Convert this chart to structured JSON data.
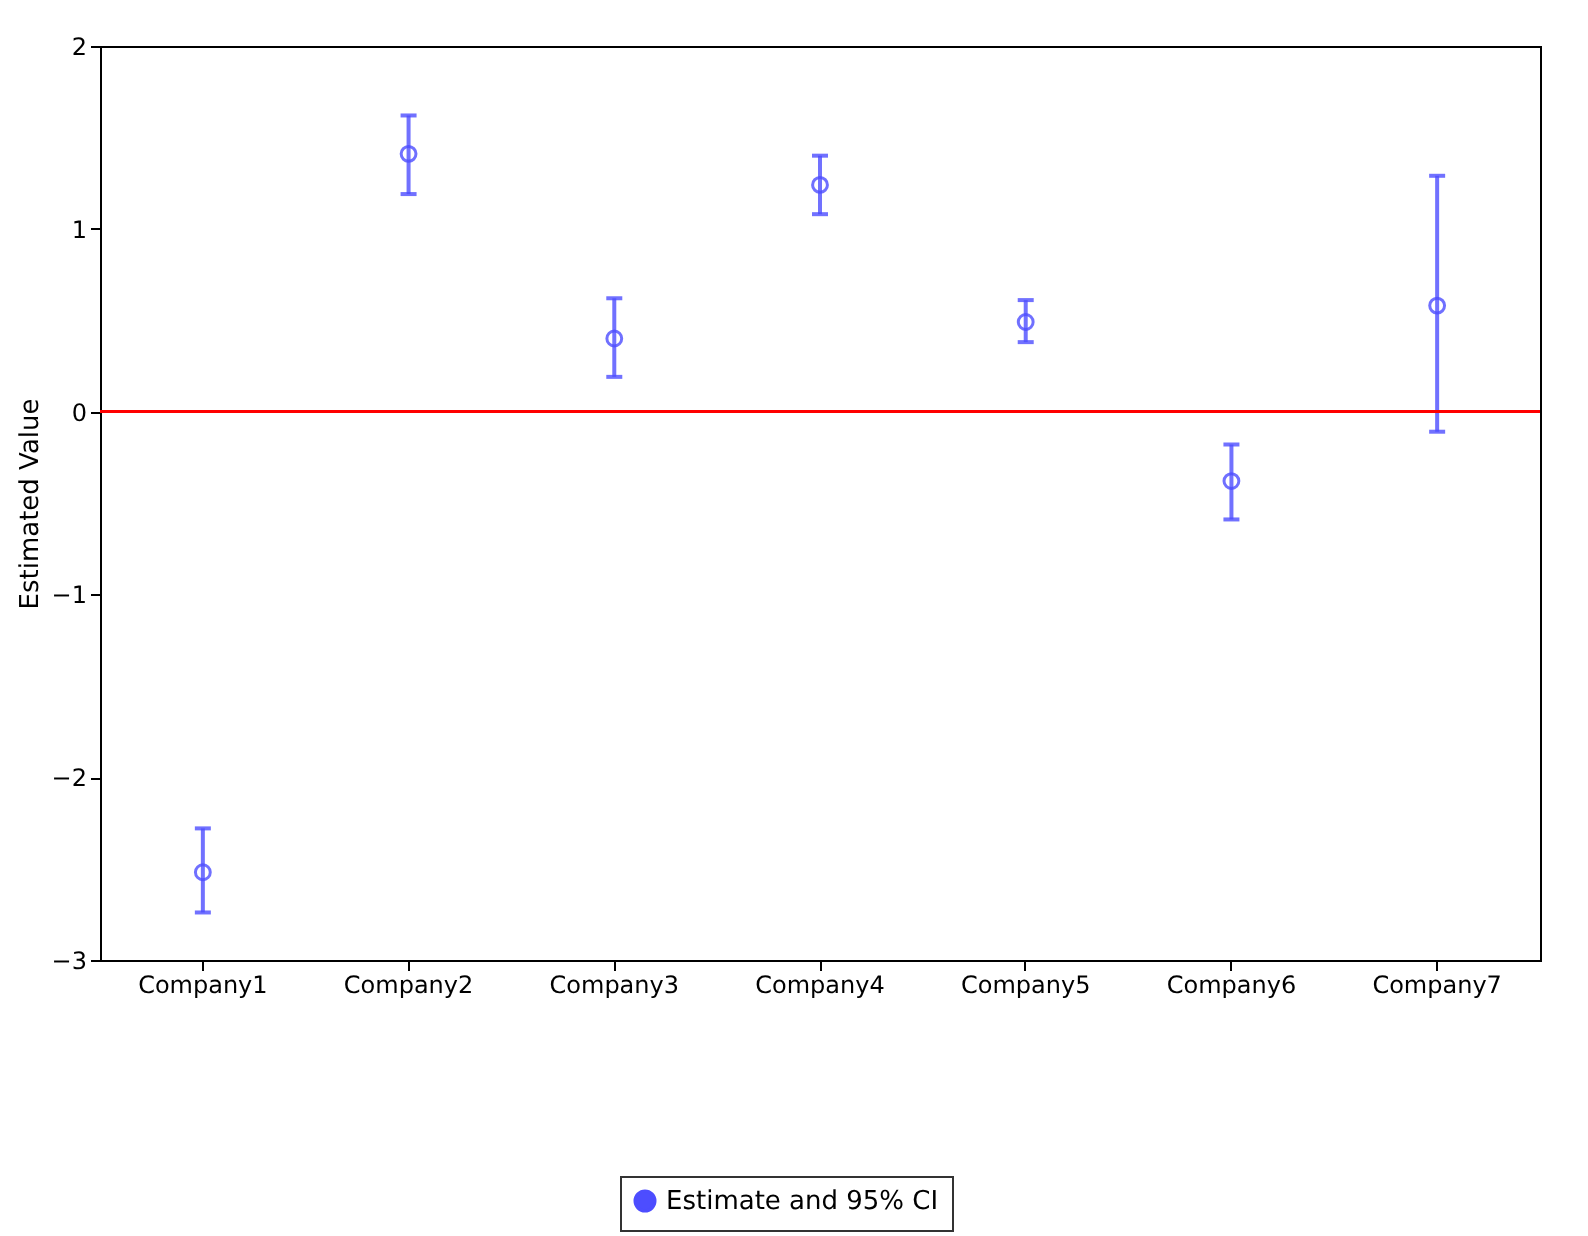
{
  "chart_data": {
    "type": "scatter",
    "categories": [
      "Company1",
      "Company2",
      "Company3",
      "Company4",
      "Company5",
      "Company6",
      "Company7"
    ],
    "series": [
      {
        "name": "Estimate and 95% CI",
        "color": "#4d4dff",
        "values": [
          -2.52,
          1.41,
          0.4,
          1.24,
          0.49,
          -0.38,
          0.58
        ],
        "errors": [
          [
            -2.74,
            -2.28
          ],
          [
            1.19,
            1.62
          ],
          [
            0.19,
            0.62
          ],
          [
            1.08,
            1.4
          ],
          [
            0.38,
            0.61
          ],
          [
            -0.59,
            -0.18
          ],
          [
            -0.11,
            1.29
          ]
        ]
      }
    ],
    "ylabel": "Estimated Value",
    "ylim": [
      -3,
      2
    ],
    "yticks": [
      -3,
      -2,
      -1,
      0,
      1,
      2
    ],
    "ref_lines": [
      {
        "axis": "y",
        "value": 0,
        "color": "#ff0000"
      }
    ],
    "marker": "circle",
    "grid": false,
    "legend": "bottom"
  }
}
